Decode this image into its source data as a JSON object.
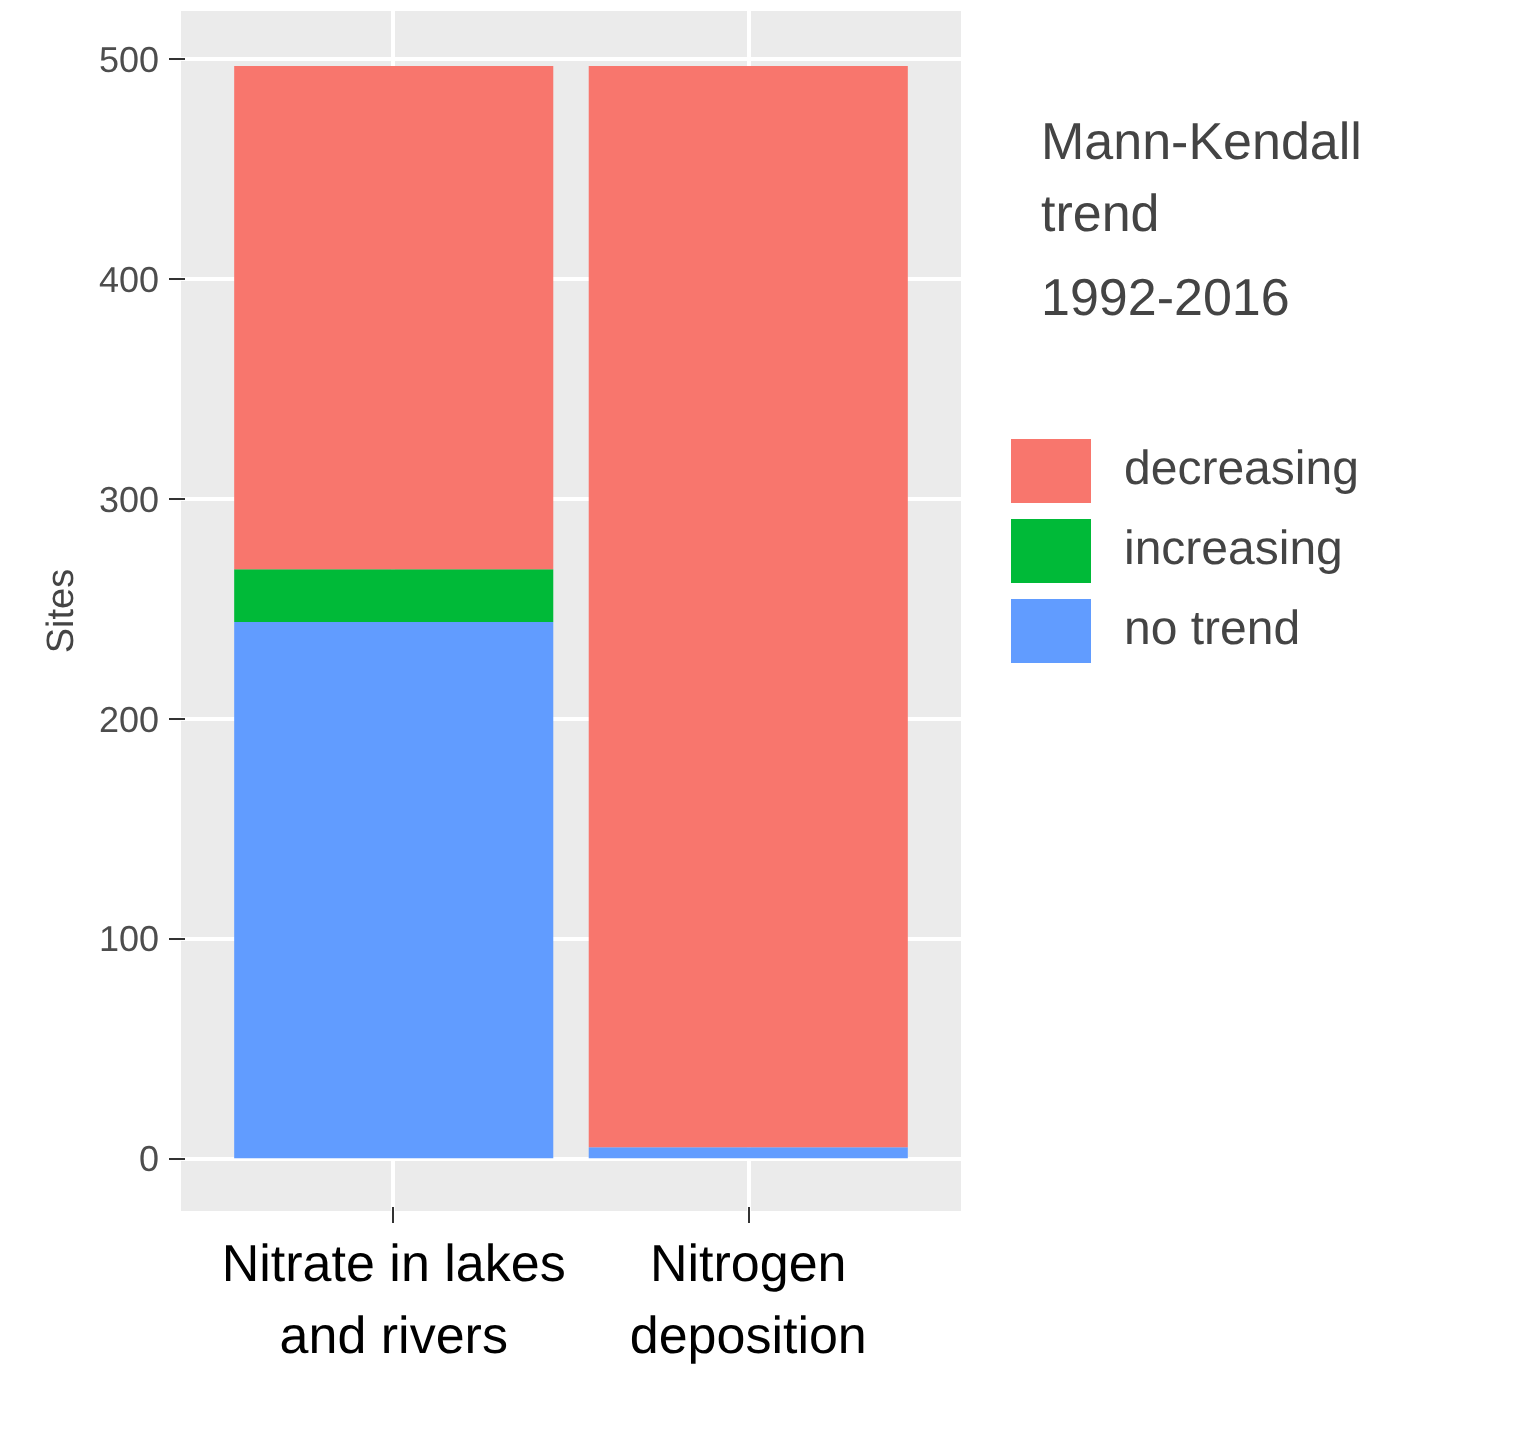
{
  "chart_data": {
    "type": "bar",
    "stacked": true,
    "ylabel": "Sites",
    "legend_title": "Mann-Kendall trend 1992-2016",
    "categories": [
      "Nitrate in lakes and rivers",
      "Nitrogen deposition"
    ],
    "series": [
      {
        "name": "no trend",
        "color": "#619cff",
        "values": [
          244,
          5
        ]
      },
      {
        "name": "increasing",
        "color": "#00ba38",
        "values": [
          24,
          0
        ]
      },
      {
        "name": "decreasing",
        "color": "#f8766d",
        "values": [
          229,
          492
        ]
      }
    ],
    "ylim": [
      -24,
      522
    ],
    "yticks": [
      0,
      100,
      200,
      300,
      400,
      500
    ],
    "grid": true,
    "legend": "right"
  }
}
